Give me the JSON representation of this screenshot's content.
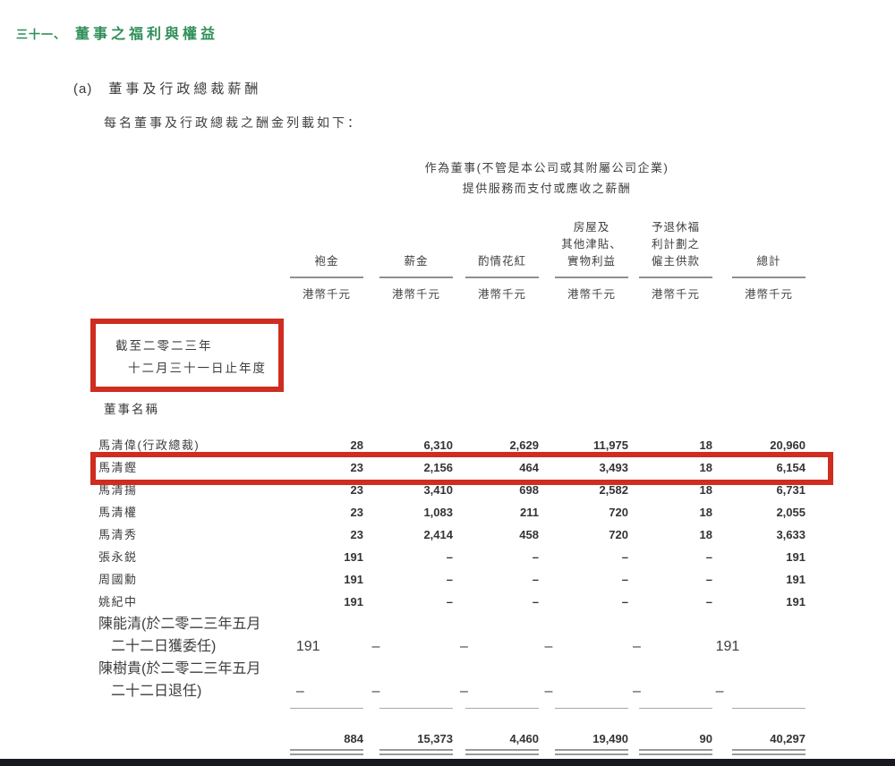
{
  "page": {
    "section_number": "三十一、",
    "section_title": "董事之福利與權益",
    "item_label": "(a)",
    "item_title": "董事及行政總裁薪酬",
    "intro": "每名董事及行政總裁之酬金列載如下："
  },
  "table": {
    "span_header": "作為董事(不管是本公司或其附屬公司企業)\n提供服務而支付或應收之薪酬",
    "columns": [
      "袍金",
      "薪金",
      "酌情花紅",
      "房屋及\n其他津貼、\n實物利益",
      "予退休福\n利計劃之\n僱主供款",
      "總計"
    ],
    "unit": "港幣千元",
    "period_line1": "截至二零二三年",
    "period_line2": "十二月三十一日止年度",
    "row_header": "董事名稱",
    "rows": [
      {
        "name": "馬清偉(行政總裁)",
        "values": [
          "28",
          "6,310",
          "2,629",
          "11,975",
          "18",
          "20,960"
        ]
      },
      {
        "name": "馬清鏗",
        "highlighted": true,
        "values": [
          "23",
          "2,156",
          "464",
          "3,493",
          "18",
          "6,154"
        ]
      },
      {
        "name": "馬清揚",
        "values": [
          "23",
          "3,410",
          "698",
          "2,582",
          "18",
          "6,731"
        ]
      },
      {
        "name": "馬清權",
        "values": [
          "23",
          "1,083",
          "211",
          "720",
          "18",
          "2,055"
        ]
      },
      {
        "name": "馬清秀",
        "values": [
          "23",
          "2,414",
          "458",
          "720",
          "18",
          "3,633"
        ]
      },
      {
        "name": "張永鋭",
        "values": [
          "191",
          "–",
          "–",
          "–",
          "–",
          "191"
        ]
      },
      {
        "name": "周國勳",
        "values": [
          "191",
          "–",
          "–",
          "–",
          "–",
          "191"
        ]
      },
      {
        "name": "姚紀中",
        "values": [
          "191",
          "–",
          "–",
          "–",
          "–",
          "191"
        ]
      },
      {
        "name": "陳能清(於二零二三年五月",
        "name_line2": "二十二日獲委任)",
        "values": [
          "191",
          "–",
          "–",
          "–",
          "–",
          "191"
        ]
      },
      {
        "name": "陳樹貴(於二零二三年五月",
        "name_line2": "二十二日退任)",
        "values": [
          "–",
          "–",
          "–",
          "–",
          "–",
          "–"
        ]
      }
    ],
    "totals": [
      "884",
      "15,373",
      "4,460",
      "19,490",
      "90",
      "40,297"
    ]
  },
  "colors": {
    "accent_green": "#2f8f58",
    "highlight_red": "#ce2d20",
    "bottom_bar": "#181821"
  }
}
